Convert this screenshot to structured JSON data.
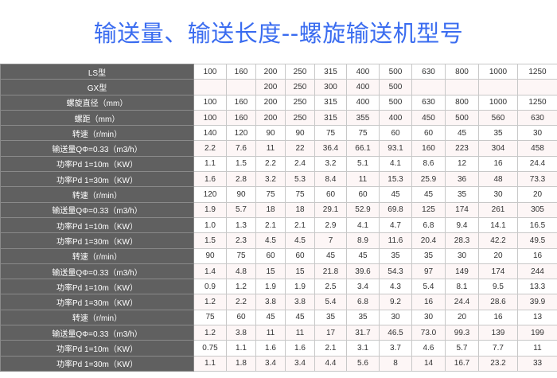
{
  "title": "输送量、输送长度--螺旋输送机型号",
  "colors": {
    "title": "#3a6cf0",
    "label_bg": "#606060",
    "alt_row_bg": "#fdf6f6"
  },
  "rows": [
    {
      "label": "LS型",
      "values": [
        "100",
        "160",
        "200",
        "250",
        "315",
        "400",
        "500",
        "630",
        "800",
        "1000",
        "1250"
      ]
    },
    {
      "label": "GX型",
      "values": [
        "",
        "",
        "200",
        "250",
        "300",
        "400",
        "500",
        "",
        "",
        "",
        ""
      ]
    },
    {
      "label": "螺旋直径（mm）",
      "values": [
        "100",
        "160",
        "200",
        "250",
        "315",
        "400",
        "500",
        "630",
        "800",
        "1000",
        "1250"
      ]
    },
    {
      "label": "螺距（mm）",
      "values": [
        "100",
        "160",
        "200",
        "250",
        "315",
        "355",
        "400",
        "450",
        "500",
        "560",
        "630"
      ]
    },
    {
      "label": "转速（r/min）",
      "values": [
        "140",
        "120",
        "90",
        "90",
        "75",
        "75",
        "60",
        "60",
        "45",
        "35",
        "30"
      ]
    },
    {
      "label": "输送量QΦ=0.33（m3/h）",
      "values": [
        "2.2",
        "7.6",
        "11",
        "22",
        "36.4",
        "66.1",
        "93.1",
        "160",
        "223",
        "304",
        "458"
      ]
    },
    {
      "label": "功率Pd 1=10m（KW）",
      "values": [
        "1.1",
        "1.5",
        "2.2",
        "2.4",
        "3.2",
        "5.1",
        "4.1",
        "8.6",
        "12",
        "16",
        "24.4"
      ]
    },
    {
      "label": "功率Pd 1=30m（KW）",
      "values": [
        "1.6",
        "2.8",
        "3.2",
        "5.3",
        "8.4",
        "11",
        "15.3",
        "25.9",
        "36",
        "48",
        "73.3"
      ]
    },
    {
      "label": "转速（r/min）",
      "values": [
        "120",
        "90",
        "75",
        "75",
        "60",
        "60",
        "45",
        "45",
        "35",
        "30",
        "20"
      ]
    },
    {
      "label": "输送量QΦ=0.33（m3/h）",
      "values": [
        "1.9",
        "5.7",
        "18",
        "18",
        "29.1",
        "52.9",
        "69.8",
        "125",
        "174",
        "261",
        "305"
      ]
    },
    {
      "label": "功率Pd 1=10m（KW）",
      "values": [
        "1.0",
        "1.3",
        "2.1",
        "2.1",
        "2.9",
        "4.1",
        "4.7",
        "6.8",
        "9.4",
        "14.1",
        "16.5"
      ]
    },
    {
      "label": "功率Pd 1=30m（KW）",
      "values": [
        "1.5",
        "2.3",
        "4.5",
        "4.5",
        "7",
        "8.9",
        "11.6",
        "20.4",
        "28.3",
        "42.2",
        "49.5"
      ]
    },
    {
      "label": "转速（r/min）",
      "values": [
        "90",
        "75",
        "60",
        "60",
        "45",
        "45",
        "35",
        "35",
        "30",
        "20",
        "16"
      ]
    },
    {
      "label": "输送量QΦ=0.33（m3/h）",
      "values": [
        "1.4",
        "4.8",
        "15",
        "15",
        "21.8",
        "39.6",
        "54.3",
        "97",
        "149",
        "174",
        "244"
      ]
    },
    {
      "label": "功率Pd 1=10m（KW）",
      "values": [
        "0.9",
        "1.2",
        "1.9",
        "1.9",
        "2.5",
        "3.4",
        "4.3",
        "5.4",
        "8.1",
        "9.5",
        "13.3"
      ]
    },
    {
      "label": "功率Pd 1=30m（KW）",
      "values": [
        "1.2",
        "2.2",
        "3.8",
        "3.8",
        "5.4",
        "6.8",
        "9.2",
        "16",
        "24.4",
        "28.6",
        "39.9"
      ]
    },
    {
      "label": "转速（r/min）",
      "values": [
        "75",
        "60",
        "45",
        "45",
        "35",
        "35",
        "30",
        "30",
        "20",
        "16",
        "13"
      ]
    },
    {
      "label": "输送量QΦ=0.33（m3/h）",
      "values": [
        "1.2",
        "3.8",
        "11",
        "11",
        "17",
        "31.7",
        "46.5",
        "73.0",
        "99.3",
        "139",
        "199"
      ]
    },
    {
      "label": "功率Pd 1=10m（KW）",
      "values": [
        "0.75",
        "1.1",
        "1.6",
        "1.6",
        "2.1",
        "3.1",
        "3.7",
        "4.6",
        "5.7",
        "7.7",
        "11"
      ]
    },
    {
      "label": "功率Pd 1=30m（KW）",
      "values": [
        "1.1",
        "1.8",
        "3.4",
        "3.4",
        "4.4",
        "5.6",
        "8",
        "14",
        "16.7",
        "23.2",
        "33"
      ]
    }
  ]
}
